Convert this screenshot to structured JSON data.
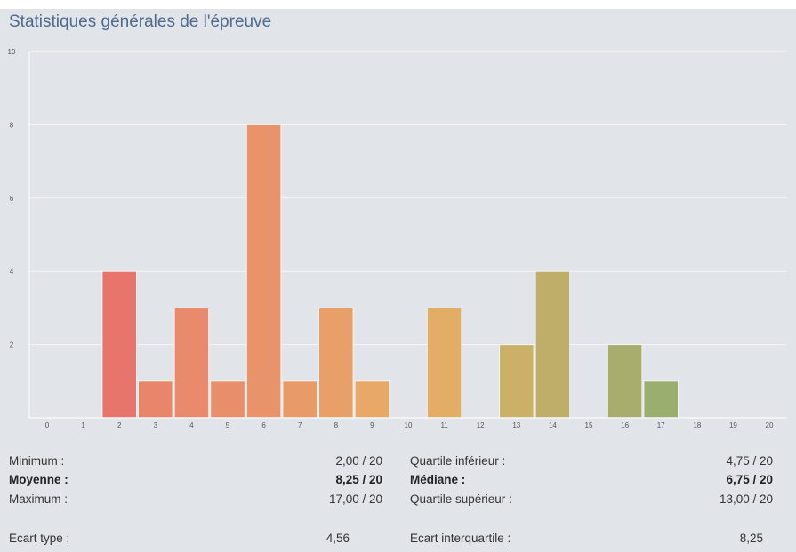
{
  "title": "Statistiques générales de l'épreuve",
  "chart_data": {
    "type": "bar",
    "categories": [
      "0",
      "1",
      "2",
      "3",
      "4",
      "5",
      "6",
      "7",
      "8",
      "9",
      "10",
      "11",
      "12",
      "13",
      "14",
      "15",
      "16",
      "17",
      "18",
      "19",
      "20"
    ],
    "values": [
      0,
      0,
      4,
      1,
      3,
      1,
      8,
      1,
      3,
      1,
      0,
      3,
      0,
      2,
      4,
      0,
      2,
      1,
      0,
      0,
      0
    ],
    "ylim": [
      0,
      10
    ],
    "yticks": [
      "10",
      "8",
      "6",
      "4",
      "2"
    ],
    "grid": true,
    "colors": [
      "#e8756b",
      "#e8756b",
      "#e8756b",
      "#e8856b",
      "#e88a6b",
      "#e88e6a",
      "#e8936a",
      "#e89a69",
      "#e8a068",
      "#e8a868",
      "#e8aa67",
      "#e2ae66",
      "#d8b066",
      "#cbb167",
      "#bfae69",
      "#b2ac6c",
      "#a8ad6d",
      "#9aae6f",
      "#8da870",
      "#8da870",
      "#8da870"
    ]
  },
  "stats": {
    "min_label": "Minimum :",
    "min_value": "2,00 / 20",
    "mean_label": "Moyenne :",
    "mean_value": "8,25 / 20",
    "max_label": "Maximum :",
    "max_value": "17,00 / 20",
    "std_label": "Ecart type :",
    "std_value": "4,56",
    "q1_label": "Quartile inférieur :",
    "q1_value": "4,75 / 20",
    "median_label": "Médiane :",
    "median_value": "6,75 / 20",
    "q3_label": "Quartile supérieur :",
    "q3_value": "13,00 / 20",
    "iqr_label": "Ecart interquartile :",
    "iqr_value": "8,25"
  }
}
